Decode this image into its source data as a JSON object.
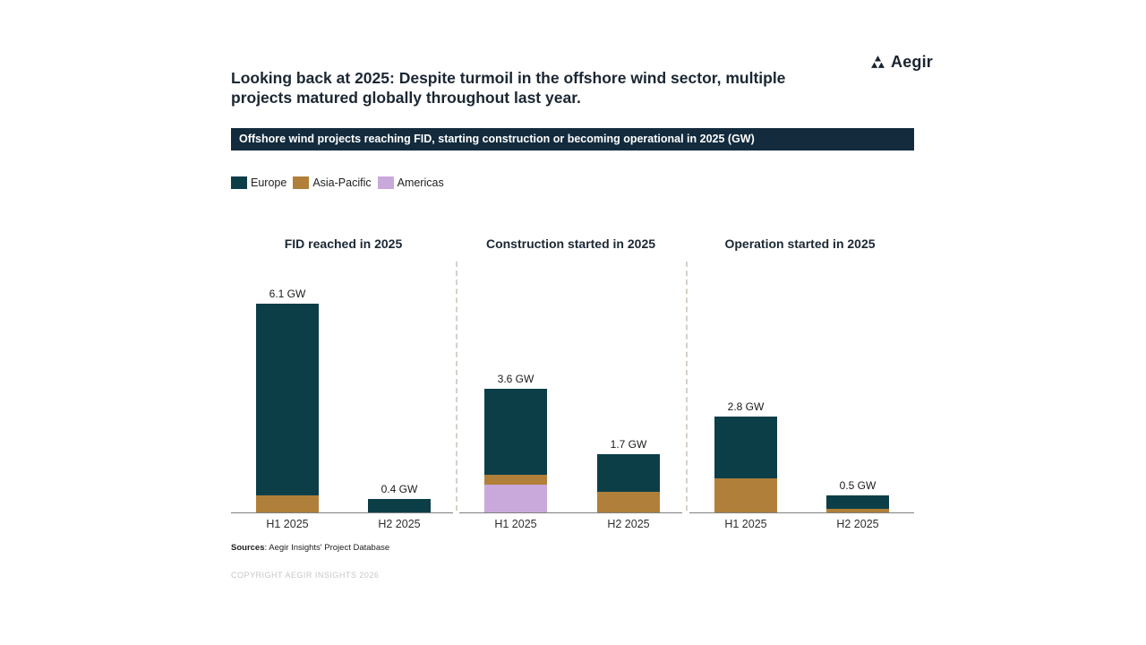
{
  "logo": {
    "text": "Aegir"
  },
  "header": {
    "title_line1": "Looking back at 2025: Despite turmoil in the offshore wind sector, multiple",
    "title_line2": "projects matured globally throughout last year."
  },
  "banner": {
    "text": "Offshore wind projects reaching FID, starting construction or becoming operational in 2025 (GW)"
  },
  "legend": [
    {
      "label": "Europe",
      "color": "#0c3e48"
    },
    {
      "label": "Asia-Pacific",
      "color": "#b0803a"
    },
    {
      "label": "Americas",
      "color": "#c9a8dc"
    }
  ],
  "colors": {
    "Europe": "#0c3e48",
    "Asia-Pacific": "#b0803a",
    "Americas": "#c9a8dc",
    "banner_bg": "#132b3d",
    "divider": "#d8d0c8"
  },
  "chart_data": {
    "type": "bar",
    "stacked": true,
    "unit": "GW",
    "legend_position": "top-left",
    "grid": false,
    "stack_order_bottom_to_top": [
      "Americas",
      "Asia-Pacific",
      "Europe"
    ],
    "panels": [
      {
        "title": "FID reached in 2025",
        "categories": [
          "H1 2025",
          "H2 2025"
        ],
        "total_labels": [
          "6.1 GW",
          "0.4 GW"
        ],
        "totals": [
          6.1,
          0.4
        ],
        "series": [
          {
            "name": "Europe",
            "values": [
              5.6,
              0.4
            ]
          },
          {
            "name": "Asia-Pacific",
            "values": [
              0.5,
              0
            ]
          },
          {
            "name": "Americas",
            "values": [
              0,
              0
            ]
          }
        ]
      },
      {
        "title": "Construction started in 2025",
        "categories": [
          "H1 2025",
          "H2 2025"
        ],
        "total_labels": [
          "3.6 GW",
          "1.7 GW"
        ],
        "totals": [
          3.6,
          1.7
        ],
        "series": [
          {
            "name": "Europe",
            "values": [
              2.5,
              1.1
            ]
          },
          {
            "name": "Asia-Pacific",
            "values": [
              0.3,
              0.6
            ]
          },
          {
            "name": "Americas",
            "values": [
              0.8,
              0
            ]
          }
        ]
      },
      {
        "title": "Operation started in 2025",
        "categories": [
          "H1 2025",
          "H2 2025"
        ],
        "total_labels": [
          "2.8 GW",
          "0.5 GW"
        ],
        "totals": [
          2.8,
          0.5
        ],
        "series": [
          {
            "name": "Europe",
            "values": [
              1.8,
              0.4
            ]
          },
          {
            "name": "Asia-Pacific",
            "values": [
              1.0,
              0.1
            ]
          },
          {
            "name": "Americas",
            "values": [
              0,
              0
            ]
          }
        ]
      }
    ]
  },
  "footer": {
    "sources_label": "Sources",
    "sources_text": ": Aegir Insights' Project Database",
    "copyright": "COPYRIGHT AEGIR INSIGHTS 2026"
  }
}
